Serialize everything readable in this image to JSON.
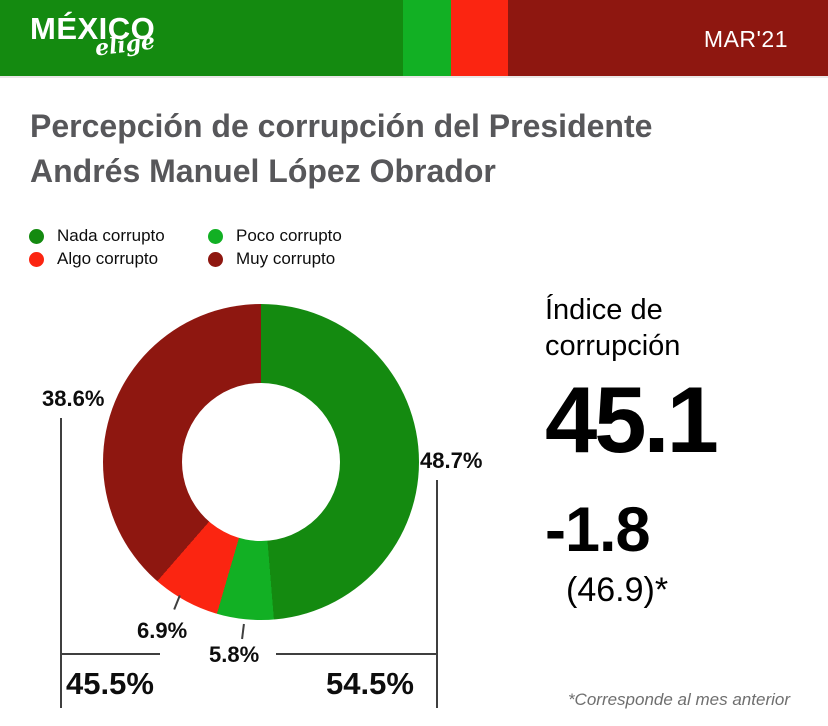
{
  "header": {
    "logo_main": "MÉXICO",
    "logo_sub": "elige",
    "date_label": "MAR'21"
  },
  "title": {
    "line1": "Percepción de corrupción del Presidente",
    "line2": "Andrés Manuel López Obrador"
  },
  "legend": [
    {
      "label": "Nada corrupto",
      "color": "#148a10"
    },
    {
      "label": "Poco corrupto",
      "color": "#12b024"
    },
    {
      "label": "Algo corrupto",
      "color": "#fb2511"
    },
    {
      "label": "Muy corrupto",
      "color": "#8e1710"
    }
  ],
  "chart_data": {
    "type": "pie",
    "donut": true,
    "title": "Percepción de corrupción del Presidente Andrés Manuel López Obrador",
    "categories": [
      "Nada corrupto",
      "Poco corrupto",
      "Algo corrupto",
      "Muy corrupto"
    ],
    "values": [
      48.7,
      5.8,
      6.9,
      38.6
    ],
    "unit": "%",
    "colors": [
      "#148a10",
      "#12b024",
      "#fb2511",
      "#8e1710"
    ],
    "start_angle_deg": 0,
    "direction": "clockwise",
    "slice_labels": {
      "nada": "48.7%",
      "poco": "5.8%",
      "algo": "6.9%",
      "muy": "38.6%"
    },
    "group_totals": {
      "negative": "45.5%",
      "positive": "54.5%"
    }
  },
  "index_panel": {
    "heading_line1": "Índice de",
    "heading_line2": "corrupción",
    "value": "45.1",
    "change": "-1.8",
    "previous_value": "(46.9)*"
  },
  "footnote": "*Corresponde al mes anterior"
}
